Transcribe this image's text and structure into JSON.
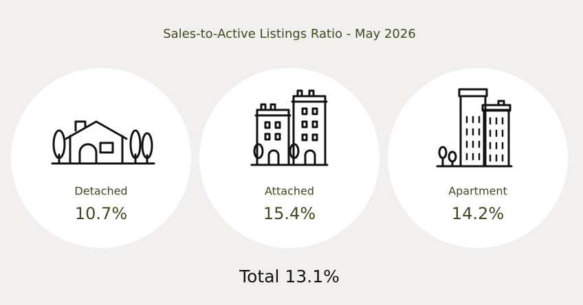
{
  "header": {
    "title": "Sales-to-Active Listings Ratio - May 2026"
  },
  "cards": [
    {
      "label": "Detached",
      "value": "10.7%"
    },
    {
      "label": "Attached",
      "value": "15.4%"
    },
    {
      "label": "Apartment",
      "value": "14.2%"
    }
  ],
  "footer": {
    "total": "Total 13.1%"
  }
}
